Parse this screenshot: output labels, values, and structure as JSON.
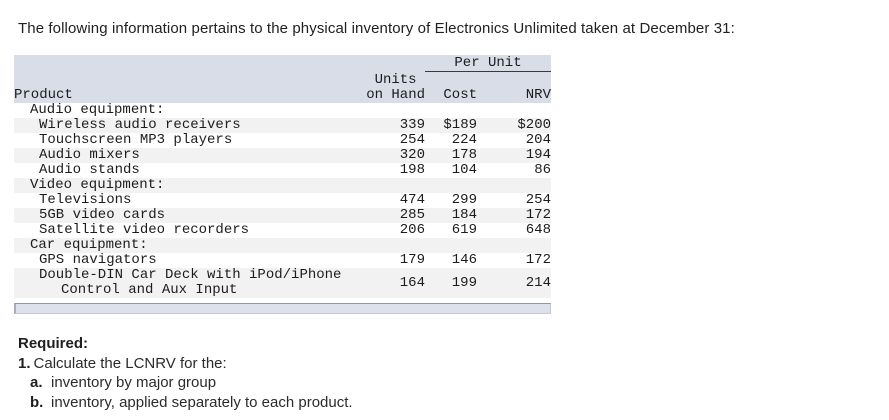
{
  "intro": "The following information pertains to the physical inventory of Electronics Unlimited taken at December 31:",
  "table": {
    "header": {
      "per_unit": "Per Unit",
      "product": "Product",
      "units_label": "Units \non Hand",
      "cost": "Cost",
      "nrv": "NRV"
    },
    "rows": [
      {
        "type": "group",
        "product": "Audio equipment:"
      },
      {
        "type": "item",
        "product": "Wireless audio receivers",
        "units": "339",
        "cost": "$189",
        "nrv": "$200"
      },
      {
        "type": "item",
        "product": "Touchscreen MP3 players",
        "units": "254",
        "cost": "224",
        "nrv": "204"
      },
      {
        "type": "item",
        "product": "Audio mixers",
        "units": "320",
        "cost": "178",
        "nrv": "194"
      },
      {
        "type": "item",
        "product": "Audio stands",
        "units": "198",
        "cost": "104",
        "nrv": "86"
      },
      {
        "type": "group",
        "product": "Video equipment:"
      },
      {
        "type": "item",
        "product": "Televisions",
        "units": "474",
        "cost": "299",
        "nrv": "254"
      },
      {
        "type": "item",
        "product": "5GB video cards",
        "units": "285",
        "cost": "184",
        "nrv": "172"
      },
      {
        "type": "item",
        "product": "Satellite video recorders",
        "units": "206",
        "cost": "619",
        "nrv": "648"
      },
      {
        "type": "group",
        "product": "Car equipment:"
      },
      {
        "type": "item",
        "product": "GPS navigators",
        "units": "179",
        "cost": "146",
        "nrv": "172"
      },
      {
        "type": "item",
        "product": "Double-DIN Car Deck with iPod/iPhone",
        "product_line2": "Control and Aux Input",
        "units": "164",
        "cost": "199",
        "nrv": "214"
      }
    ]
  },
  "required": {
    "heading": "Required:",
    "item1_label": "1.",
    "item1_text": "Calculate the LCNRV for the:",
    "item_a_label": "a.",
    "item_a_text": "inventory by major group",
    "item_b_label": "b.",
    "item_b_text": "inventory, applied separately to each product."
  },
  "colors": {
    "header_bg": "#d9dde8",
    "row_stripe": "#f2f2f2",
    "scrollbar_track": "#dde1eb",
    "text": "#1c1c1c"
  }
}
